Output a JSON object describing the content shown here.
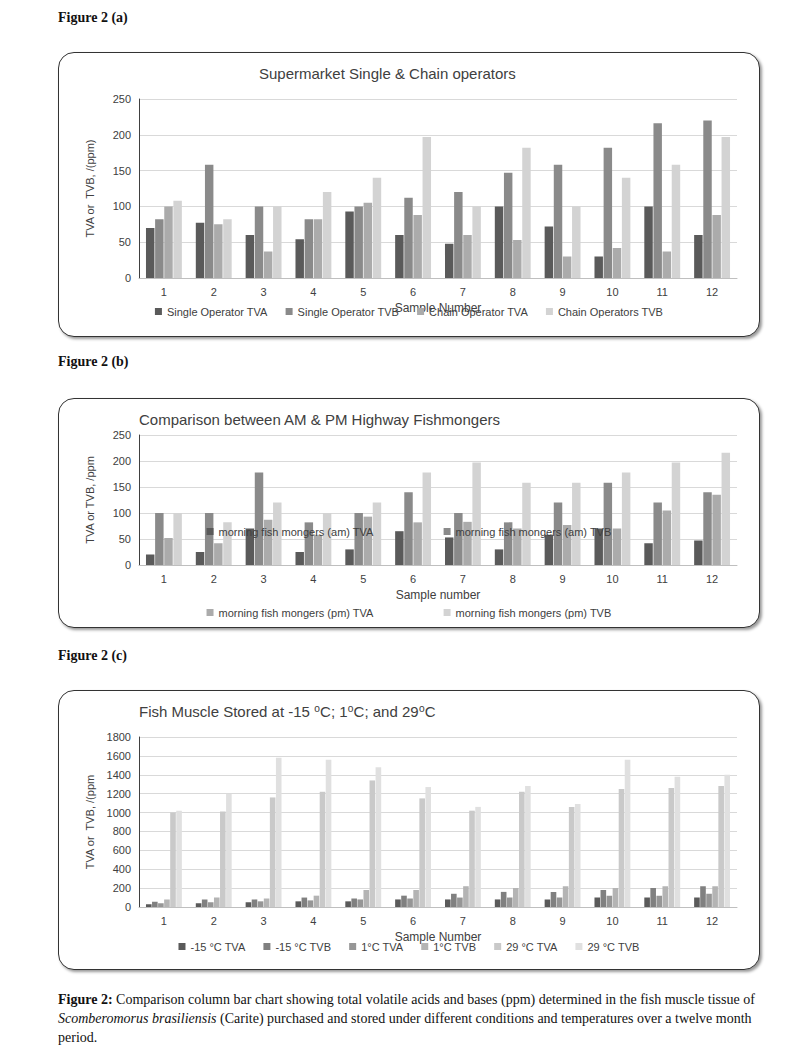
{
  "chart_data": [
    {
      "type": "bar",
      "figure_label": "Figure 2 (a)",
      "title": "Supermarket Single & Chain operators",
      "x_label": "Sample Number",
      "y_label": "TVA or  TVB, /(ppm)",
      "categories": [
        "1",
        "2",
        "3",
        "4",
        "5",
        "6",
        "7",
        "8",
        "9",
        "10",
        "11",
        "12"
      ],
      "series": [
        {
          "name": "Single Operator TVA",
          "color": "#5a5a5a",
          "values": [
            70,
            77,
            60,
            54,
            93,
            60,
            48,
            100,
            72,
            30,
            100,
            60
          ]
        },
        {
          "name": "Single Operator TVB",
          "color": "#8a8a8a",
          "values": [
            82,
            158,
            100,
            82,
            100,
            112,
            120,
            147,
            158,
            182,
            216,
            220
          ]
        },
        {
          "name": "Chain Operator TVA",
          "color": "#ababab",
          "values": [
            100,
            75,
            37,
            82,
            105,
            88,
            60,
            53,
            30,
            42,
            37,
            88
          ]
        },
        {
          "name": "Chain Operators TVB",
          "color": "#d3d3d3",
          "values": [
            108,
            82,
            100,
            120,
            140,
            197,
            100,
            182,
            100,
            140,
            158,
            197
          ]
        }
      ],
      "ylim": [
        0,
        250
      ],
      "yticks": [
        0,
        50,
        100,
        150,
        200,
        250
      ],
      "grid": true,
      "legend": "bottom"
    },
    {
      "type": "bar",
      "figure_label": "Figure 2 (b)",
      "title": "Comparison between AM & PM Highway Fishmongers",
      "x_label": "Sample number",
      "y_label": "TVA or TVB, /ppm",
      "categories": [
        "1",
        "2",
        "3",
        "4",
        "5",
        "6",
        "7",
        "8",
        "9",
        "10",
        "11",
        "12"
      ],
      "series": [
        {
          "name": "morning fish mongers (am) TVA",
          "color": "#5a5a5a",
          "values": [
            20,
            25,
            70,
            25,
            30,
            65,
            53,
            30,
            58,
            70,
            42,
            47
          ]
        },
        {
          "name": "morning fish mongers (am) TVB",
          "color": "#8a8a8a",
          "values": [
            100,
            100,
            178,
            82,
            100,
            140,
            100,
            82,
            120,
            158,
            120,
            140
          ]
        },
        {
          "name": "morning fish mongers (pm) TVA",
          "color": "#ababab",
          "values": [
            52,
            42,
            87,
            58,
            93,
            82,
            83,
            70,
            77,
            70,
            105,
            135
          ]
        },
        {
          "name": "morning fish mongers (pm) TVB",
          "color": "#d3d3d3",
          "values": [
            100,
            82,
            120,
            100,
            120,
            178,
            197,
            158,
            158,
            178,
            197,
            216
          ]
        }
      ],
      "ylim": [
        0,
        250
      ],
      "yticks": [
        0,
        50,
        100,
        150,
        200,
        250
      ],
      "grid": true,
      "legend": "bottom"
    },
    {
      "type": "bar",
      "figure_label": "Figure 2 (c)",
      "title": "Fish Muscle Stored at -15 ⁰C; 1⁰C; and 29⁰C",
      "x_label": "Sample Number",
      "y_label": "TVA or  TVB, /(ppm",
      "categories": [
        "1",
        "2",
        "3",
        "4",
        "5",
        "6",
        "7",
        "8",
        "9",
        "10",
        "11",
        "12"
      ],
      "series": [
        {
          "name": "-15 °C TVA",
          "color": "#5a5a5a",
          "values": [
            30,
            40,
            50,
            60,
            60,
            80,
            80,
            80,
            80,
            100,
            100,
            100
          ]
        },
        {
          "name": "-15 °C TVB",
          "color": "#808080",
          "values": [
            55,
            80,
            80,
            100,
            90,
            120,
            140,
            160,
            160,
            180,
            200,
            220
          ]
        },
        {
          "name": "1°C TVA",
          "color": "#969696",
          "values": [
            40,
            50,
            60,
            70,
            80,
            90,
            100,
            100,
            100,
            120,
            120,
            140
          ]
        },
        {
          "name": "1°C TVB",
          "color": "#b4b4b4",
          "values": [
            80,
            100,
            90,
            120,
            180,
            180,
            220,
            200,
            220,
            200,
            220,
            220
          ]
        },
        {
          "name": "29 °C TVA",
          "color": "#c9c9c9",
          "values": [
            1000,
            1010,
            1160,
            1220,
            1340,
            1150,
            1020,
            1220,
            1060,
            1250,
            1260,
            1280
          ]
        },
        {
          "name": "29 °C TVB",
          "color": "#e0e0e0",
          "values": [
            1020,
            1200,
            1580,
            1560,
            1480,
            1270,
            1060,
            1280,
            1090,
            1560,
            1380,
            1400
          ]
        }
      ],
      "ylim": [
        0,
        1800
      ],
      "yticks": [
        0,
        200,
        400,
        600,
        800,
        1000,
        1200,
        1400,
        1600,
        1800
      ],
      "grid": true,
      "legend": "bottom"
    }
  ],
  "caption": {
    "label": "Figure 2:",
    "parts": [
      "Comparison column bar chart showing total volatile acids and bases (ppm) determined in the fish muscle tissue of",
      "Scomberomorus brasiliensis",
      "(Carite) purchased and stored under different conditions and temperatures over a twelve month period."
    ]
  }
}
